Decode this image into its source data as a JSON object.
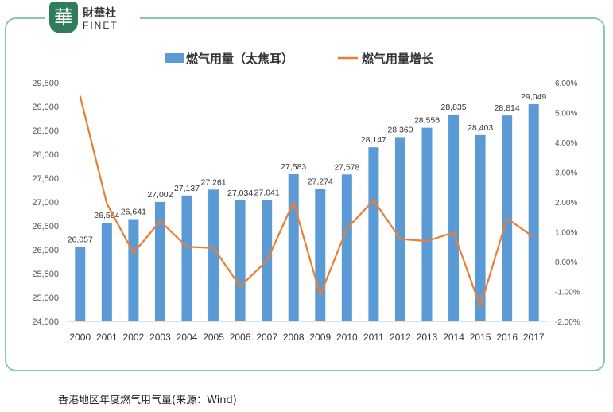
{
  "brand": {
    "mark": "華",
    "name_cn": "財華社",
    "name_en": "FINET"
  },
  "caption": "香港地区年度燃气用气量(来源：Wind)",
  "colors": {
    "bar": "#5b9bd5",
    "line": "#ed7d31",
    "frame": "#86c8b0",
    "brand": "#2f7d5e"
  },
  "chart_data": {
    "type": "bar",
    "categories": [
      "2000",
      "2001",
      "2002",
      "2003",
      "2004",
      "2005",
      "2006",
      "2007",
      "2008",
      "2009",
      "2010",
      "2011",
      "2012",
      "2013",
      "2014",
      "2015",
      "2016",
      "2017"
    ],
    "series": [
      {
        "name": "燃气用量（太焦耳）",
        "type": "bar",
        "axis": "left",
        "values": [
          26057,
          26564,
          26641,
          27002,
          27137,
          27261,
          27034,
          27041,
          27583,
          27274,
          27578,
          28147,
          28360,
          28556,
          28835,
          28403,
          28814,
          29049
        ],
        "labels": [
          "26,057",
          "26,564",
          "26,641",
          "27,002",
          "27,137",
          "27,261",
          "27,034",
          "27,041",
          "27,583",
          "27,274",
          "27,578",
          "28,147",
          "28,360",
          "28,556",
          "28,835",
          "28,403",
          "28,814",
          "29,049"
        ]
      },
      {
        "name": "燃气用量增长",
        "type": "line",
        "axis": "right",
        "values": [
          5.55,
          1.95,
          0.29,
          1.36,
          0.5,
          0.46,
          -0.83,
          0.03,
          2.0,
          -1.12,
          1.11,
          2.06,
          0.76,
          0.69,
          0.98,
          -1.5,
          1.45,
          0.82
        ]
      }
    ],
    "ylim_left": [
      24500,
      29500
    ],
    "yticks_left": [
      "24,500",
      "25,000",
      "25,500",
      "26,000",
      "26,500",
      "27,000",
      "27,500",
      "28,000",
      "28,500",
      "29,000",
      "29,500"
    ],
    "ylim_right": [
      -2.0,
      6.0
    ],
    "yticks_right": [
      "-2.00%",
      "-1.00%",
      "0.00%",
      "1.00%",
      "2.00%",
      "3.00%",
      "4.00%",
      "5.00%",
      "6.00%"
    ],
    "legend_position": "top-center",
    "grid": false
  }
}
